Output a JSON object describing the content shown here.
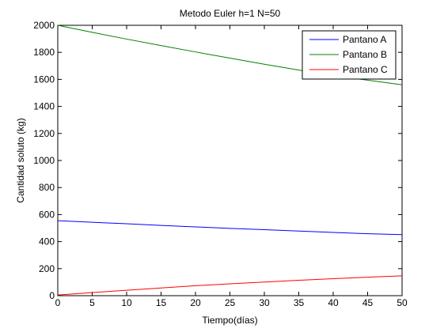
{
  "chart_data": {
    "type": "line",
    "title": "Metodo Euler h=1 N=50",
    "xlabel": "Tiempo(días)",
    "ylabel": "Cantidad soluto (kg)",
    "xlim": [
      0,
      50
    ],
    "ylim": [
      0,
      2000
    ],
    "xticks": [
      0,
      5,
      10,
      15,
      20,
      25,
      30,
      35,
      40,
      45,
      50
    ],
    "yticks": [
      0,
      200,
      400,
      600,
      800,
      1000,
      1200,
      1400,
      1600,
      1800,
      2000
    ],
    "grid": false,
    "legend_position": "top-right",
    "x": [
      0,
      5,
      10,
      15,
      20,
      25,
      30,
      35,
      40,
      45,
      50
    ],
    "series": [
      {
        "name": "Pantano A",
        "color": "#0000ff",
        "values": [
          555,
          543,
          532,
          520,
          509,
          498,
          488,
          478,
          468,
          458,
          452
        ]
      },
      {
        "name": "Pantano B",
        "color": "#008000",
        "values": [
          2000,
          1948,
          1898,
          1850,
          1803,
          1757,
          1712,
          1669,
          1627,
          1594,
          1560
        ]
      },
      {
        "name": "Pantano C",
        "color": "#ff0000",
        "values": [
          5,
          23,
          40,
          57,
          74,
          88,
          101,
          114,
          126,
          137,
          147
        ]
      }
    ]
  }
}
